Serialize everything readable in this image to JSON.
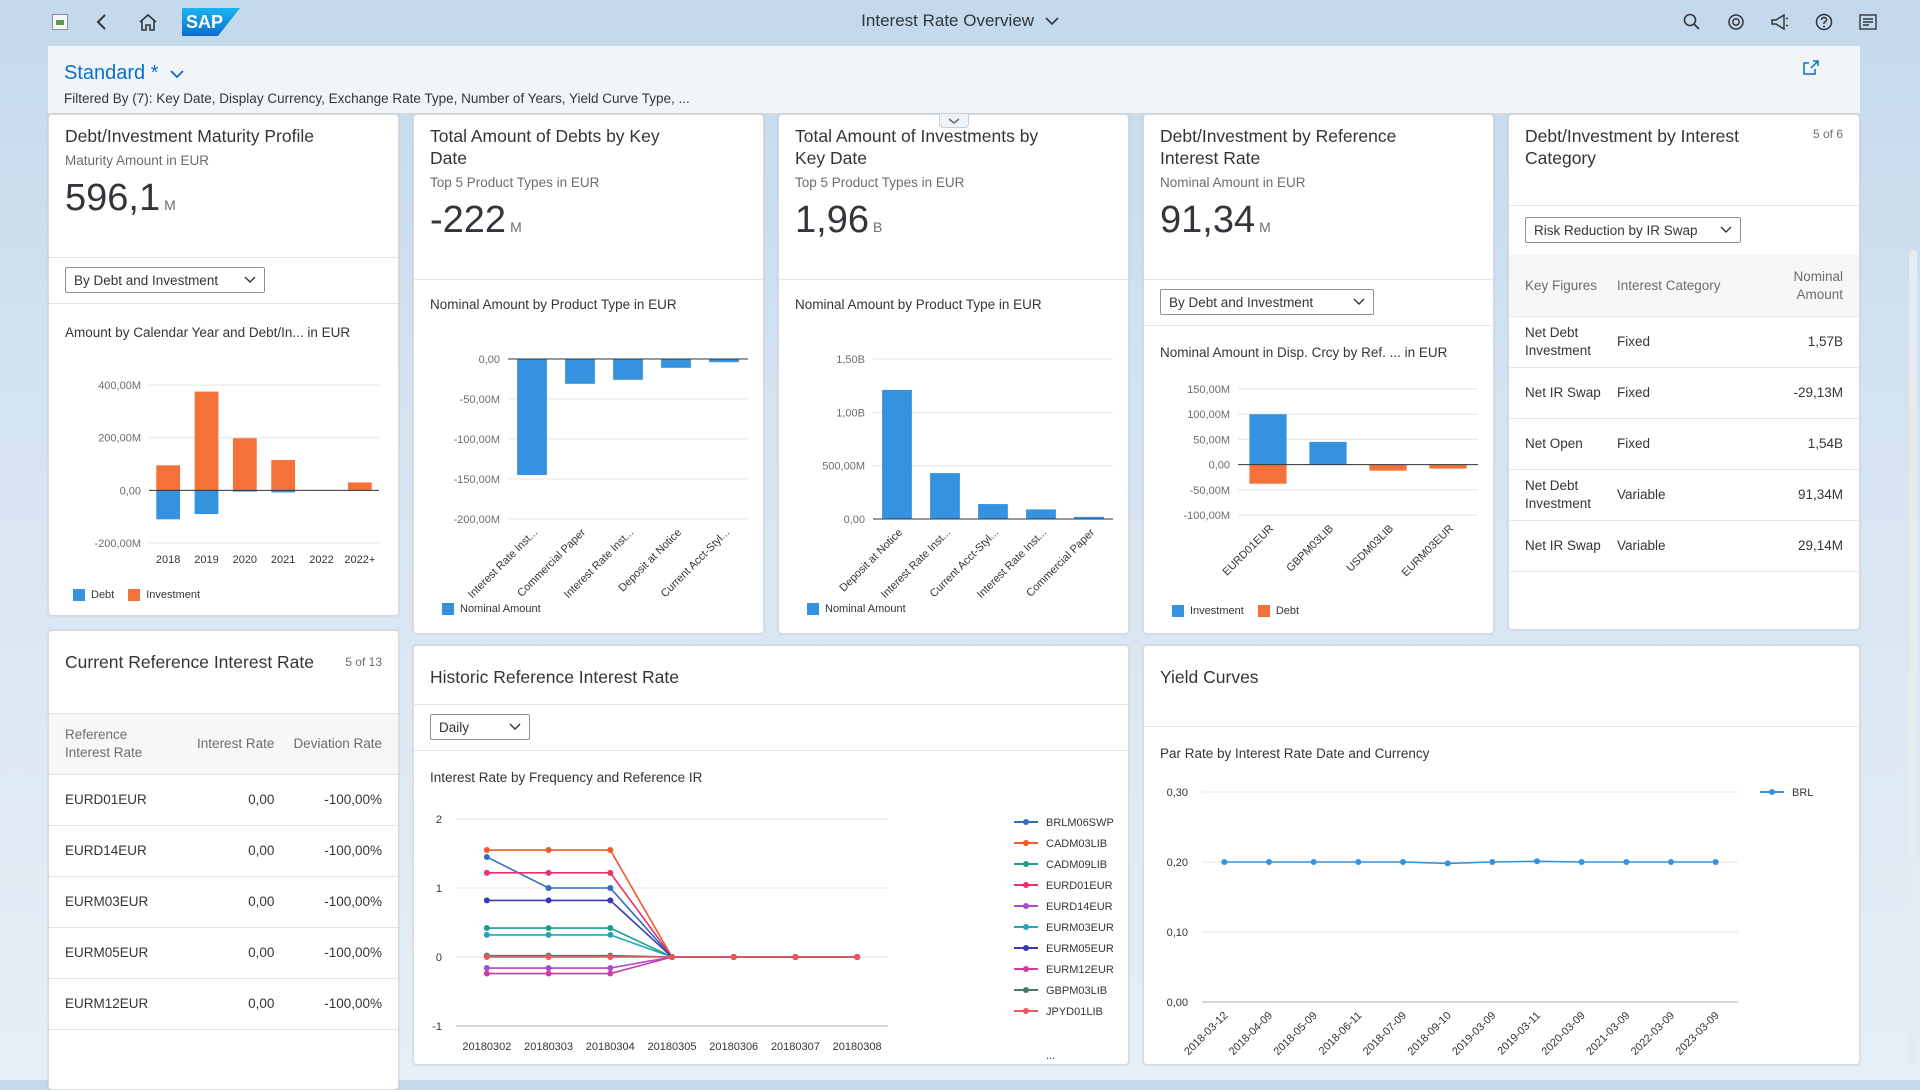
{
  "shell": {
    "title": "Interest Rate Overview",
    "logo": "SAP",
    "icons": [
      "back-icon",
      "home-icon",
      "search-icon",
      "copilot-icon",
      "notifications-icon",
      "help-icon",
      "user-menu-icon"
    ]
  },
  "header": {
    "variant": "Standard *",
    "filtered": "Filtered By (7): Key Date, Display Currency, Exchange Rate Type, Number of Years, Yield Curve Type, ..."
  },
  "card1": {
    "title": "Debt/Investment Maturity Profile",
    "subtitle": "Maturity Amount in EUR",
    "kpi": "596,1",
    "kpi_unit": "M",
    "select": "By Debt and Investment",
    "chart_title": "Amount by Calendar Year and Debt/In...  in EUR",
    "legend": [
      "Debt",
      "Investment"
    ]
  },
  "card2": {
    "title_l1": "Total Amount of Debts by Key",
    "title_l2": "Date",
    "subtitle": "Top 5 Product Types in EUR",
    "kpi": "-222",
    "kpi_unit": "M",
    "chart_title": "Nominal Amount by Product Type in EUR",
    "legend": "Nominal Amount"
  },
  "card3": {
    "title_l1": "Total Amount of Investments by",
    "title_l2": "Key Date",
    "subtitle": "Top 5 Product Types in EUR",
    "kpi": "1,96",
    "kpi_unit": "B",
    "chart_title": "Nominal Amount by Product Type in EUR",
    "legend": "Nominal Amount"
  },
  "card4": {
    "title_l1": "Debt/Investment by Reference",
    "title_l2": "Interest Rate",
    "subtitle": "Nominal Amount in EUR",
    "kpi": "91,34",
    "kpi_unit": "M",
    "select": "By Debt and Investment",
    "chart_title": "Nominal Amount in Disp. Crcy by Ref. ...  in EUR",
    "legend": [
      "Investment",
      "Debt"
    ]
  },
  "card5": {
    "title_l1": "Debt/Investment by Interest",
    "title_l2": "Category",
    "counter": "5 of 6",
    "select": "Risk Reduction by IR Swap",
    "headers": [
      "Key Figures",
      "Interest Category",
      "Nominal Amount"
    ],
    "rows": [
      {
        "key": "Net Debt Investment",
        "cat": "Fixed",
        "amount": "1,57B"
      },
      {
        "key": "Net IR Swap",
        "cat": "Fixed",
        "amount": "-29,13M"
      },
      {
        "key": "Net Open",
        "cat": "Fixed",
        "amount": "1,54B"
      },
      {
        "key": "Net Debt Investment",
        "cat": "Variable",
        "amount": "91,34M"
      },
      {
        "key": "Net IR Swap",
        "cat": "Variable",
        "amount": "29,14M"
      }
    ]
  },
  "card6": {
    "title": "Current Reference Interest Rate",
    "counter": "5 of 13",
    "headers": [
      "Reference Interest Rate",
      "Interest Rate",
      "Deviation Rate"
    ],
    "rows": [
      {
        "ref": "EURD01EUR",
        "rate": "0,00",
        "dev": "-100,00%"
      },
      {
        "ref": "EURD14EUR",
        "rate": "0,00",
        "dev": "-100,00%"
      },
      {
        "ref": "EURM03EUR",
        "rate": "0,00",
        "dev": "-100,00%"
      },
      {
        "ref": "EURM05EUR",
        "rate": "0,00",
        "dev": "-100,00%"
      },
      {
        "ref": "EURM12EUR",
        "rate": "0,00",
        "dev": "-100,00%"
      }
    ]
  },
  "card7": {
    "title": "Historic Reference Interest Rate",
    "select": "Daily",
    "chart_title": "Interest Rate by Frequency and Reference IR",
    "more": "..."
  },
  "card8": {
    "title": "Yield Curves",
    "chart_title": "Par Rate by Interest Rate Date and Currency"
  },
  "chart_data": [
    {
      "type": "bar",
      "categories": [
        "2018",
        "2019",
        "2020",
        "2021",
        "2022",
        "2022+"
      ],
      "series": [
        {
          "name": "Debt",
          "values": [
            -110,
            -90,
            -5,
            -8,
            0,
            0
          ]
        },
        {
          "name": "Investment",
          "values": [
            95,
            375,
            198,
            115,
            0,
            30
          ]
        }
      ],
      "yticks": [
        "400,00M",
        "200,00M",
        "0,00",
        "-200,00M"
      ],
      "ylim": [
        -200,
        400
      ],
      "colors": {
        "Debt": "#3592de",
        "Investment": "#f4723a"
      }
    },
    {
      "type": "bar",
      "categories": [
        "Interest Rate Inst...",
        "Commercial Paper",
        "Interest Rate Inst...",
        "Deposit at Notice",
        "Current Acct-Styl..."
      ],
      "series": [
        {
          "name": "Nominal Amount",
          "values": [
            -145,
            -31,
            -26,
            -11,
            -4
          ]
        }
      ],
      "yticks": [
        "0,00",
        "-50,00M",
        "-100,00M",
        "-150,00M",
        "-200,00M"
      ],
      "ylim": [
        -200,
        0
      ]
    },
    {
      "type": "bar",
      "categories": [
        "Deposit at Notice",
        "Interest Rate Inst...",
        "Current Acct-Styl...",
        "Interest Rate Inst...",
        "Commercial Paper"
      ],
      "series": [
        {
          "name": "Nominal Amount",
          "values": [
            1.21,
            0.43,
            0.14,
            0.09,
            0.02
          ]
        }
      ],
      "yticks": [
        "1,50B",
        "1,00B",
        "500,00M",
        "0,00"
      ],
      "ylim": [
        0,
        1.5
      ]
    },
    {
      "type": "bar",
      "categories": [
        "EURD01EUR",
        "GBPM03LIB",
        "USDM03LIB",
        "EURM03EUR"
      ],
      "series": [
        {
          "name": "Investment",
          "values": [
            100,
            45,
            0,
            0
          ]
        },
        {
          "name": "Debt",
          "values": [
            -38,
            0,
            -12,
            -8
          ]
        }
      ],
      "yticks": [
        "150,00M",
        "100,00M",
        "50,00M",
        "0,00",
        "-50,00M",
        "-100,00M"
      ],
      "ylim": [
        -100,
        150
      ]
    },
    {
      "type": "line",
      "x": [
        "20180302",
        "20180303",
        "20180304",
        "20180305",
        "20180306",
        "20180307",
        "20180308"
      ],
      "yticks": [
        "2",
        "1",
        "0",
        "-1"
      ],
      "ylim": [
        -1,
        2
      ],
      "series": [
        {
          "name": "BRLM06SWP",
          "color": "#2f6fbf",
          "values": [
            1.45,
            1.0,
            1.0,
            0,
            0,
            0,
            0
          ]
        },
        {
          "name": "CADM03LIB",
          "color": "#f05a28",
          "values": [
            1.55,
            1.55,
            1.55,
            0,
            0,
            0,
            0
          ]
        },
        {
          "name": "CADM09LIB",
          "color": "#18a08c",
          "values": [
            0.42,
            0.42,
            0.42,
            0,
            0,
            0,
            0
          ]
        },
        {
          "name": "EURD01EUR",
          "color": "#e8336b",
          "values": [
            1.22,
            1.22,
            1.22,
            0,
            0,
            0,
            0
          ]
        },
        {
          "name": "EURD14EUR",
          "color": "#a84ccf",
          "values": [
            -0.16,
            -0.16,
            -0.16,
            0,
            0,
            0,
            0
          ]
        },
        {
          "name": "EURM03EUR",
          "color": "#26a5b8",
          "values": [
            0.32,
            0.32,
            0.32,
            0,
            0,
            0,
            0
          ]
        },
        {
          "name": "EURM05EUR",
          "color": "#3a3ab8",
          "values": [
            0.82,
            0.82,
            0.82,
            0,
            0,
            0,
            0
          ]
        },
        {
          "name": "EURM12EUR",
          "color": "#d13aa0",
          "values": [
            -0.24,
            -0.24,
            -0.24,
            0,
            0,
            0,
            0
          ]
        },
        {
          "name": "GBPM03LIB",
          "color": "#4a7a6a",
          "values": [
            0.02,
            0.02,
            0.02,
            0,
            0,
            0,
            0
          ]
        },
        {
          "name": "JPYD01LIB",
          "color": "#f2545b",
          "values": [
            0.0,
            0.0,
            0.0,
            0,
            0,
            0,
            0
          ]
        }
      ]
    },
    {
      "type": "line",
      "x": [
        "2018-03-12",
        "2018-04-09",
        "2018-05-09",
        "2018-06-11",
        "2018-07-09",
        "2018-09-10",
        "2019-03-09",
        "2019-03-11",
        "2020-03-09",
        "2021-03-09",
        "2022-03-09",
        "2023-03-09"
      ],
      "yticks": [
        "0,30",
        "0,20",
        "0,10",
        "0,00"
      ],
      "ylim": [
        0,
        0.3
      ],
      "series": [
        {
          "name": "BRL",
          "color": "#3592de",
          "values": [
            0.2,
            0.2,
            0.2,
            0.2,
            0.2,
            0.198,
            0.2,
            0.201,
            0.2,
            0.2,
            0.2,
            0.2
          ]
        }
      ]
    }
  ]
}
